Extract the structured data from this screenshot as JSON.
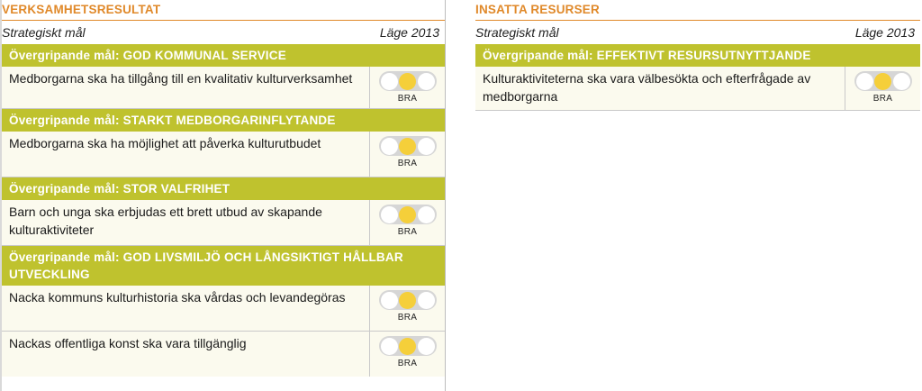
{
  "left": {
    "title": "VERKSAMHETSRESULTAT",
    "col_goal": "Strategiskt mål",
    "col_status": "Läge 2013",
    "groups": [
      {
        "goal": "Övergripande mål: GOD KOMMUNAL SERVICE",
        "rows": [
          {
            "text": "Medborgarna ska ha tillgång till en kvalitativ kulturverksamhet",
            "status": "BRA"
          }
        ]
      },
      {
        "goal": "Övergripande mål: STARKT MEDBORGARINFLYTANDE",
        "rows": [
          {
            "text": "Medborgarna ska ha möjlighet att påverka kulturutbudet",
            "status": "BRA"
          }
        ]
      },
      {
        "goal": "Övergripande mål: STOR VALFRIHET",
        "rows": [
          {
            "text": "Barn och unga ska erbjudas ett brett utbud av skapande kulturaktiviteter",
            "status": "BRA"
          }
        ]
      },
      {
        "goal": "Övergripande mål: GOD LIVSMILJÖ OCH LÅNGSIKTIGT HÅLLBAR UTVECKLING",
        "rows": [
          {
            "text": "Nacka kommuns kulturhistoria ska vårdas och levandegöras",
            "status": "BRA"
          },
          {
            "text": "Nackas offentliga konst ska vara tillgänglig",
            "status": "BRA"
          }
        ]
      }
    ]
  },
  "right": {
    "title": "INSATTA RESURSER",
    "col_goal": "Strategiskt mål",
    "col_status": "Läge 2013",
    "groups": [
      {
        "goal": "Övergripande mål: EFFEKTIVT RESURSUTNYTTJANDE",
        "rows": [
          {
            "text": "Kulturaktiviteterna ska vara välbesökta och efterfrågade av medborgarna",
            "status": "BRA"
          }
        ]
      }
    ]
  },
  "colors": {
    "accent": "#e0892a",
    "goal_band": "#bfc22e",
    "light_on": "#f5cf3a"
  }
}
